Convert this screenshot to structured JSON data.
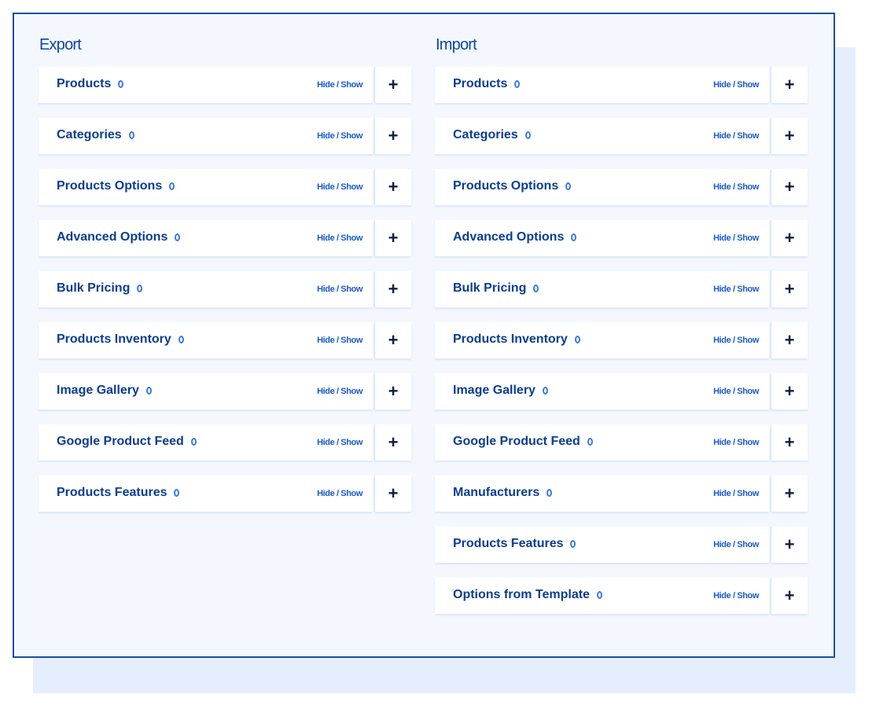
{
  "colors": {
    "frame_border": "#1a4fa0",
    "frame_bg": "#f4f8fe",
    "shadow_bg": "#e4eefc",
    "label": "#0b3d91",
    "link": "#1a5ad0",
    "info_icon": "#3b7ae0"
  },
  "row_toggle_label": "Hide / Show",
  "plus_icon": "+",
  "export": {
    "title": "Export",
    "items": [
      {
        "label": "Products"
      },
      {
        "label": "Categories"
      },
      {
        "label": "Products Options"
      },
      {
        "label": "Advanced Options"
      },
      {
        "label": "Bulk Pricing"
      },
      {
        "label": "Products Inventory"
      },
      {
        "label": "Image Gallery"
      },
      {
        "label": "Google Product Feed"
      },
      {
        "label": "Products Features"
      }
    ]
  },
  "import": {
    "title": "Import",
    "items": [
      {
        "label": "Products"
      },
      {
        "label": "Categories"
      },
      {
        "label": "Products Options"
      },
      {
        "label": "Advanced Options"
      },
      {
        "label": "Bulk Pricing"
      },
      {
        "label": "Products Inventory"
      },
      {
        "label": "Image Gallery"
      },
      {
        "label": "Google Product Feed"
      },
      {
        "label": "Manufacturers"
      },
      {
        "label": "Products Features"
      },
      {
        "label": "Options from Template"
      }
    ]
  }
}
